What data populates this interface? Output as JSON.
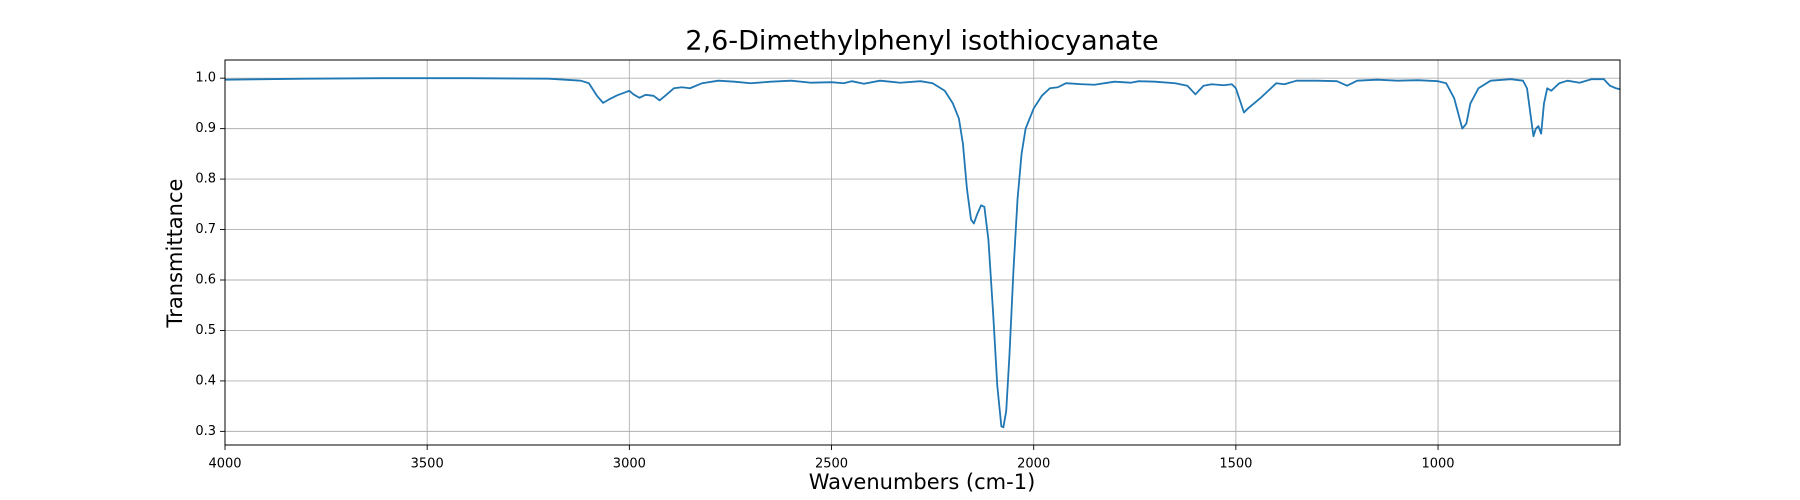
{
  "chart_data": {
    "type": "line",
    "title": "2,6-Dimethylphenyl isothiocyanate",
    "x_label": "Wavenumbers (cm-1)",
    "y_label": "Transmittance",
    "color": "#1f77b4",
    "grid": true,
    "xlim": [
      4000,
      550
    ],
    "ylim": [
      0.273,
      1.036
    ],
    "xticks": [
      4000,
      3500,
      3000,
      2500,
      2000,
      1500,
      1000
    ],
    "yticks": [
      0.3,
      0.4,
      0.5,
      0.6,
      0.7,
      0.8,
      0.9,
      {
        "value": 1,
        "label": "1.0"
      }
    ],
    "x": [
      4000,
      3800,
      3600,
      3400,
      3200,
      3120,
      3100,
      3080,
      3065,
      3050,
      3030,
      3010,
      3000,
      2990,
      2975,
      2960,
      2940,
      2925,
      2910,
      2890,
      2870,
      2850,
      2820,
      2780,
      2740,
      2700,
      2650,
      2600,
      2550,
      2500,
      2470,
      2450,
      2420,
      2380,
      2330,
      2280,
      2250,
      2220,
      2200,
      2185,
      2175,
      2165,
      2155,
      2148,
      2140,
      2130,
      2122,
      2112,
      2100,
      2090,
      2080,
      2075,
      2068,
      2060,
      2050,
      2040,
      2030,
      2020,
      2000,
      1980,
      1960,
      1940,
      1920,
      1880,
      1850,
      1800,
      1760,
      1740,
      1700,
      1650,
      1620,
      1600,
      1580,
      1560,
      1530,
      1510,
      1500,
      1480,
      1470,
      1440,
      1420,
      1400,
      1380,
      1350,
      1300,
      1250,
      1225,
      1200,
      1150,
      1100,
      1050,
      1000,
      980,
      960,
      940,
      930,
      920,
      900,
      870,
      820,
      790,
      780,
      770,
      764,
      758,
      752,
      745,
      738,
      730,
      720,
      700,
      680,
      650,
      620,
      590,
      575,
      560,
      550
    ],
    "values": [
      0.997,
      0.999,
      1.0,
      1.0,
      0.999,
      0.995,
      0.99,
      0.965,
      0.951,
      0.958,
      0.966,
      0.972,
      0.975,
      0.968,
      0.961,
      0.967,
      0.965,
      0.956,
      0.966,
      0.98,
      0.982,
      0.98,
      0.99,
      0.995,
      0.993,
      0.99,
      0.993,
      0.995,
      0.991,
      0.992,
      0.99,
      0.994,
      0.989,
      0.995,
      0.991,
      0.994,
      0.99,
      0.975,
      0.95,
      0.92,
      0.87,
      0.78,
      0.72,
      0.712,
      0.73,
      0.748,
      0.745,
      0.68,
      0.53,
      0.39,
      0.31,
      0.308,
      0.34,
      0.45,
      0.62,
      0.76,
      0.85,
      0.9,
      0.94,
      0.965,
      0.98,
      0.982,
      0.99,
      0.988,
      0.987,
      0.993,
      0.991,
      0.994,
      0.993,
      0.99,
      0.985,
      0.968,
      0.985,
      0.988,
      0.986,
      0.988,
      0.98,
      0.932,
      0.94,
      0.96,
      0.975,
      0.99,
      0.988,
      0.995,
      0.995,
      0.994,
      0.985,
      0.995,
      0.997,
      0.995,
      0.996,
      0.994,
      0.99,
      0.96,
      0.9,
      0.91,
      0.95,
      0.98,
      0.995,
      0.998,
      0.995,
      0.98,
      0.92,
      0.885,
      0.9,
      0.905,
      0.89,
      0.95,
      0.98,
      0.975,
      0.99,
      0.995,
      0.991,
      0.998,
      0.998,
      0.985,
      0.98,
      0.978
    ]
  }
}
